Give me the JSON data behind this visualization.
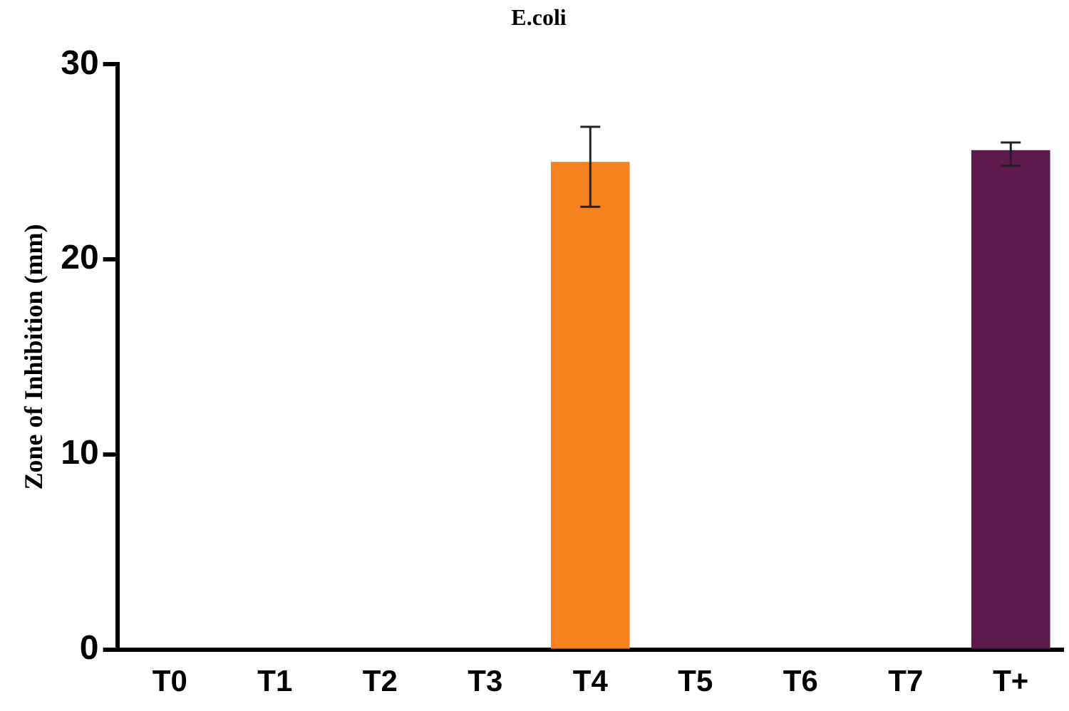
{
  "chart_data": {
    "type": "bar",
    "title": "E.coli",
    "ylabel": "Zone of Inhibition (mm)",
    "categories": [
      "T0",
      "T1",
      "T2",
      "T3",
      "T4",
      "T5",
      "T6",
      "T7",
      "T+"
    ],
    "values": [
      0,
      0,
      0,
      0,
      25.0,
      0,
      0,
      0,
      25.6
    ],
    "errors": [
      null,
      null,
      null,
      null,
      [
        22.7,
        26.8
      ],
      null,
      null,
      null,
      [
        24.8,
        26.0
      ]
    ],
    "colors": [
      "#f5821f",
      "#f5821f",
      "#f5821f",
      "#f5821f",
      "#f5821f",
      "#f5821f",
      "#f5821f",
      "#f5821f",
      "#5e1a4d"
    ],
    "ylim": [
      0,
      30
    ],
    "yticks": [
      0,
      10,
      20,
      30
    ],
    "grid": false,
    "legend": false
  }
}
